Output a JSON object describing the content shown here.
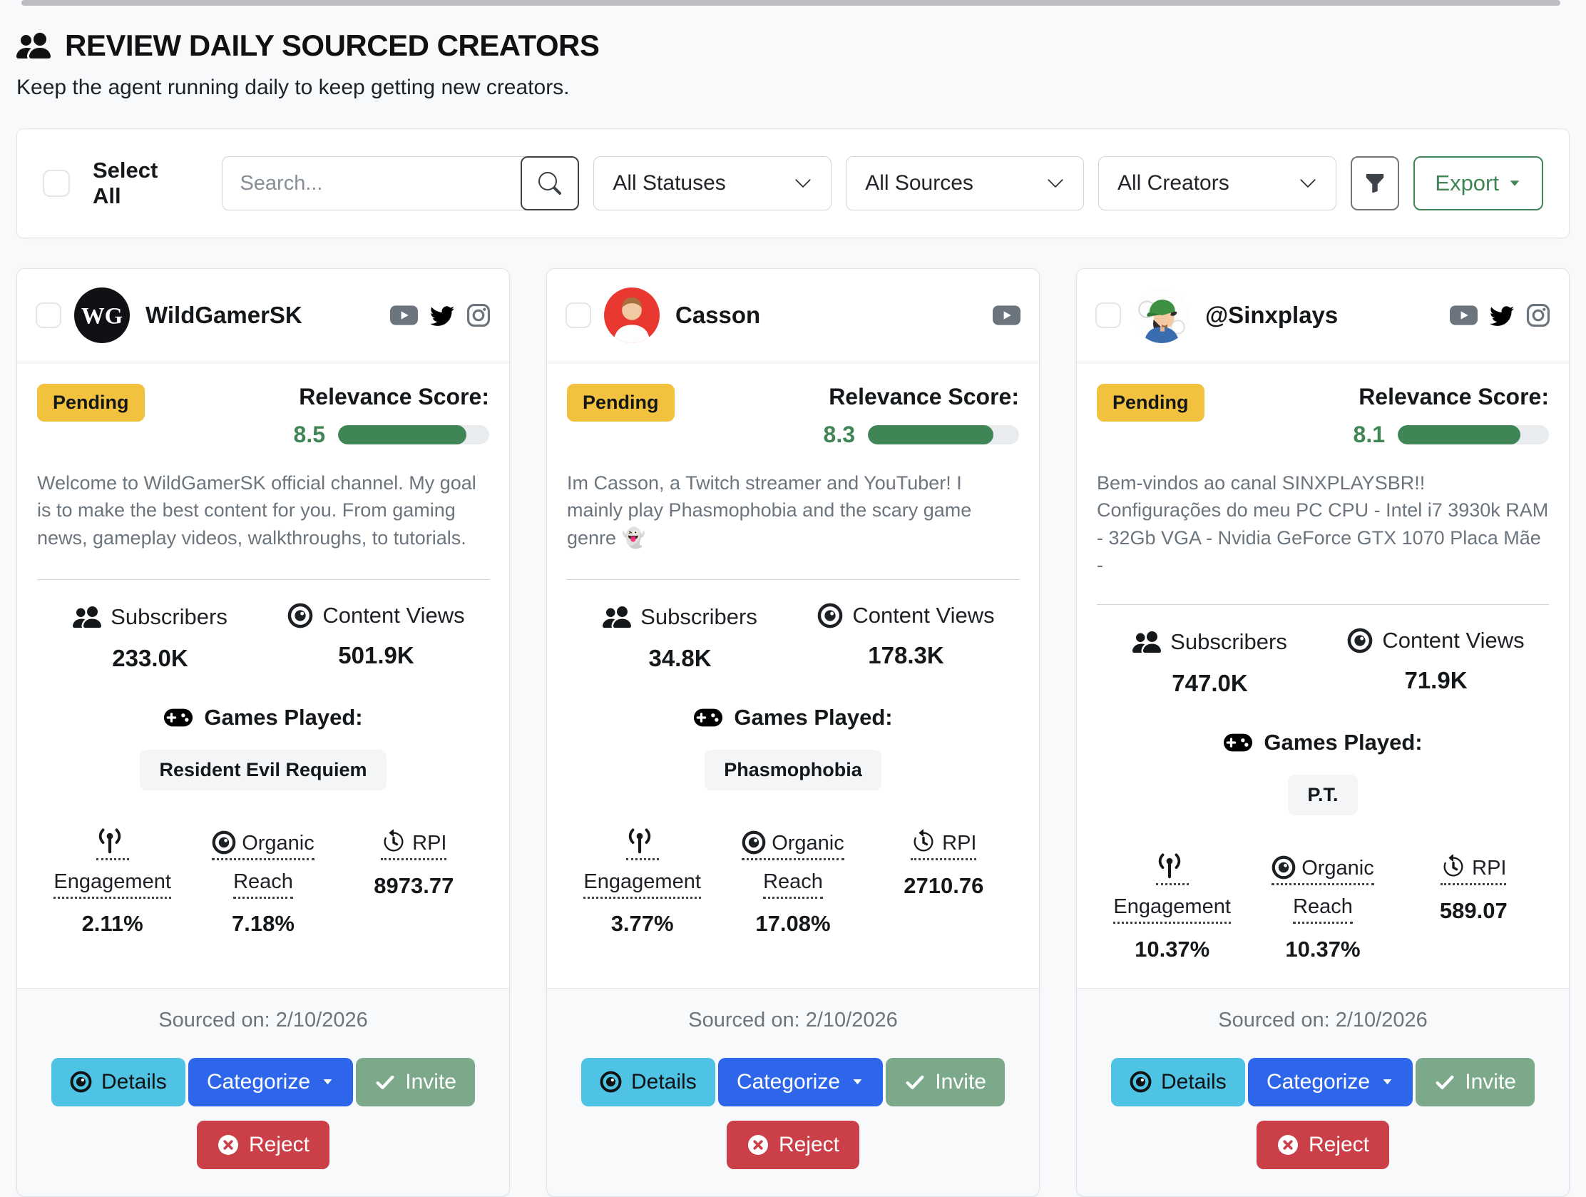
{
  "page": {
    "title": "REVIEW DAILY SOURCED CREATORS",
    "subtitle": "Keep the agent running daily to keep getting new creators."
  },
  "toolbar": {
    "select_all_label": "Select All",
    "search_placeholder": "Search...",
    "status_filter": "All Statuses",
    "source_filter": "All Sources",
    "creator_filter": "All Creators",
    "export_label": "Export"
  },
  "labels": {
    "relevance_score": "Relevance Score:",
    "subscribers": "Subscribers",
    "content_views": "Content Views",
    "games_played": "Games Played:",
    "engagement": "Engagement",
    "organic_reach": "Organic Reach",
    "rpi": "RPI",
    "details": "Details",
    "categorize": "Categorize",
    "invite": "Invite",
    "reject": "Reject"
  },
  "colors": {
    "pending_badge": "#f2c13e",
    "relevance_green": "#3f8555",
    "details_button": "#4ec3e3",
    "categorize_button": "#2d66eb",
    "invite_button": "#7ca98a",
    "reject_button": "#cb3f48",
    "export_green": "#3f8555",
    "page_background": "#f8f9fa"
  },
  "creators": [
    {
      "name": "WildGamerSK",
      "avatar_initials": "WG",
      "status": "Pending",
      "relevance_score": "8.5",
      "relevance_pct": "85",
      "description": "Welcome to WildGamerSK official channel. My goal is to make the best content for you. From gaming news, gameplay videos, walkthroughs, to tutorials.",
      "subscribers": "233.0K",
      "content_views": "501.9K",
      "games": [
        "Resident Evil Requiem"
      ],
      "engagement": "2.11%",
      "organic_reach": "7.18%",
      "rpi": "8973.77",
      "sourced_on": "Sourced on: 2/10/2026",
      "socials": [
        "youtube",
        "twitter",
        "instagram"
      ]
    },
    {
      "name": "Casson",
      "status": "Pending",
      "relevance_score": "8.3",
      "relevance_pct": "83",
      "description": "Im Casson, a Twitch streamer and YouTuber! I mainly play Phasmophobia and the scary game genre 👻",
      "subscribers": "34.8K",
      "content_views": "178.3K",
      "games": [
        "Phasmophobia"
      ],
      "engagement": "3.77%",
      "organic_reach": "17.08%",
      "rpi": "2710.76",
      "sourced_on": "Sourced on: 2/10/2026",
      "socials": [
        "youtube"
      ]
    },
    {
      "name": "@Sinxplays",
      "status": "Pending",
      "relevance_score": "8.1",
      "relevance_pct": "81",
      "description": "Bem-vindos ao canal SINXPLAYSBR!! Configurações do meu PC CPU - Intel i7 3930k RAM - 32Gb VGA - Nvidia GeForce GTX 1070 Placa Mãe -",
      "subscribers": "747.0K",
      "content_views": "71.9K",
      "games": [
        "P.T."
      ],
      "engagement": "10.37%",
      "organic_reach": "10.37%",
      "rpi": "589.07",
      "sourced_on": "Sourced on: 2/10/2026",
      "socials": [
        "youtube",
        "twitter",
        "instagram"
      ]
    }
  ]
}
